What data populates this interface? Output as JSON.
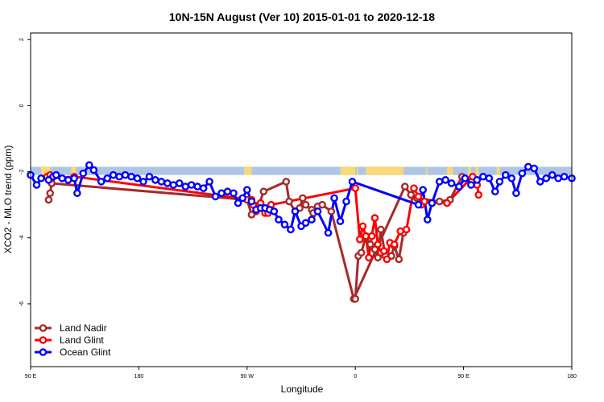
{
  "chart_data": {
    "type": "line",
    "title": "10N-15N August (Ver 10)   2015-01-01 to 2020-12-18",
    "xlabel": "Longitude",
    "ylabel": "XCO2 - MLO trend (ppm)",
    "xlim": [
      -90,
      270
    ],
    "ylim": [
      -7.9,
      2.2
    ],
    "x_ticks": [
      {
        "value": -90,
        "label": "90 E"
      },
      {
        "value": -18,
        "label": "180"
      },
      {
        "value": 54,
        "label": "90 W"
      },
      {
        "value": 126,
        "label": "0"
      },
      {
        "value": 198,
        "label": "90 E"
      },
      {
        "value": 270,
        "label": "180"
      }
    ],
    "y_ticks": [
      {
        "value": 2,
        "label": "2"
      },
      {
        "value": 0,
        "label": "0"
      },
      {
        "value": -2,
        "label": "-2"
      },
      {
        "value": -4,
        "label": "-4"
      },
      {
        "value": -6,
        "label": "-6"
      }
    ],
    "band": {
      "from": -1.85,
      "to": -2.1,
      "ocean_color": "#aec6e6",
      "land_color": "#f7d97a"
    },
    "land_segments": [
      [
        -83,
        -77
      ],
      [
        -63,
        -60
      ],
      [
        52,
        57
      ],
      [
        116,
        126
      ],
      [
        127,
        128
      ],
      [
        133,
        158
      ],
      [
        173,
        174
      ],
      [
        187,
        191
      ],
      [
        201,
        203
      ],
      [
        206,
        208
      ],
      [
        220,
        222
      ]
    ],
    "legend_position": "bottom-left",
    "series": [
      {
        "name": "Land Nadir",
        "color": "#a52a2a",
        "x": [
          -78,
          -77,
          -76,
          54,
          57,
          62,
          65,
          80,
          82,
          86,
          89,
          91,
          93,
          97,
          98,
          101,
          104,
          110,
          125,
          159,
          163,
          167,
          182,
          189,
          197
        ],
        "y": [
          -2.85,
          -2.65,
          -2.35,
          -2.85,
          -3.3,
          -3.0,
          -2.6,
          -2.3,
          -2.9,
          -3.2,
          -3.1,
          -2.8,
          -3.0,
          -3.15,
          -3.25,
          -3.05,
          -3.0,
          -3.2,
          -5.85,
          -2.45,
          -2.7,
          -2.8,
          -2.9,
          -2.85,
          -2.15
        ],
        "x2": [
          126,
          128,
          130,
          133,
          136,
          139,
          141,
          143,
          146,
          150,
          152,
          155,
          158
        ],
        "y2": [
          -5.85,
          -4.55,
          -4.45,
          -3.95,
          -4.2,
          -4.35,
          -4.6,
          -3.75,
          -4.55,
          -4.55,
          -4.25,
          -4.65,
          -3.85
        ]
      },
      {
        "name": "Land Glint",
        "color": "#ff0000",
        "x": [
          -79,
          -77,
          -76,
          -61,
          57,
          58,
          60,
          63,
          66,
          68,
          70,
          126,
          129,
          131,
          133,
          135,
          137,
          139,
          141,
          143,
          145,
          147,
          149,
          152,
          156,
          160,
          165,
          168,
          170,
          172,
          187,
          204,
          207,
          208
        ],
        "y": [
          -2.15,
          -2.1,
          -2.2,
          -2.15,
          -2.85,
          -3.0,
          -3.2,
          -2.95,
          -3.25,
          -3.25,
          -3.0,
          -2.5,
          -4.05,
          -3.65,
          -3.95,
          -4.6,
          -3.95,
          -3.4,
          -4.2,
          -4.45,
          -4.4,
          -4.65,
          -4.15,
          -4.2,
          -3.8,
          -3.75,
          -2.5,
          -2.75,
          -3.0,
          -2.9,
          -2.95,
          -2.15,
          -2.4,
          -2.7
        ]
      },
      {
        "name": "Ocean Glint",
        "color": "#0000ff",
        "x": [
          -90,
          -86,
          -83,
          -78,
          -75,
          -73,
          -69,
          -65,
          -61,
          -59,
          -55,
          -51,
          -48,
          -43,
          -39,
          -35,
          -31,
          -27,
          -23,
          -19,
          -15,
          -11,
          -7,
          -3,
          1,
          5,
          9,
          13,
          17,
          21,
          25,
          29,
          33,
          37,
          41,
          45,
          48,
          51,
          54,
          57,
          60,
          63,
          66,
          69,
          72,
          75,
          79,
          83,
          86,
          90,
          93,
          97,
          101,
          108,
          112,
          116,
          120,
          124,
          168,
          171,
          174,
          177,
          182,
          186,
          190,
          195,
          199,
          203,
          207,
          211,
          215,
          219,
          222,
          226,
          230,
          233,
          237,
          241,
          245,
          249,
          253,
          257,
          261,
          265,
          270
        ],
        "y": [
          -2.1,
          -2.4,
          -2.2,
          -2.25,
          -2.15,
          -2.1,
          -2.2,
          -2.25,
          -2.2,
          -2.65,
          -2.05,
          -1.8,
          -1.95,
          -2.3,
          -2.2,
          -2.1,
          -2.15,
          -2.1,
          -2.15,
          -2.2,
          -2.3,
          -2.15,
          -2.25,
          -2.3,
          -2.35,
          -2.4,
          -2.35,
          -2.45,
          -2.4,
          -2.45,
          -2.5,
          -2.3,
          -2.75,
          -2.65,
          -2.6,
          -2.65,
          -2.95,
          -2.8,
          -2.55,
          -2.9,
          -3.15,
          -3.1,
          -3.1,
          -3.15,
          -3.2,
          -3.45,
          -3.6,
          -3.75,
          -3.2,
          -3.65,
          -3.55,
          -3.45,
          -3.2,
          -3.85,
          -2.8,
          -3.5,
          -2.9,
          -2.3,
          -3.0,
          -2.55,
          -3.45,
          -2.95,
          -2.3,
          -2.25,
          -2.35,
          -2.45,
          -2.2,
          -2.4,
          -2.25,
          -2.15,
          -2.2,
          -2.6,
          -2.3,
          -2.1,
          -2.2,
          -2.65,
          -2.05,
          -1.85,
          -1.9,
          -2.3,
          -2.2,
          -2.1,
          -2.2,
          -2.15,
          -2.2
        ]
      }
    ]
  }
}
